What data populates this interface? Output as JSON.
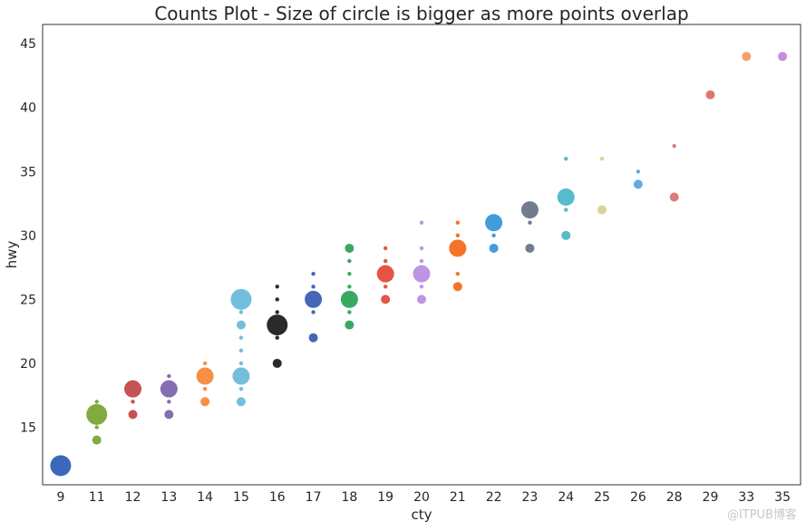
{
  "chart_data": {
    "type": "scatter",
    "title": "Counts Plot - Size of circle is bigger as more points overlap",
    "xlabel": "cty",
    "ylabel": "hwy",
    "categories": [
      "9",
      "11",
      "12",
      "13",
      "14",
      "15",
      "16",
      "17",
      "18",
      "19",
      "20",
      "21",
      "22",
      "23",
      "24",
      "25",
      "26",
      "28",
      "29",
      "33",
      "35"
    ],
    "ylim": [
      10.5,
      46.5
    ],
    "yticks": [
      15,
      20,
      25,
      30,
      35,
      40,
      45
    ],
    "grid": false,
    "legend": "none",
    "groups": [
      {
        "category": "9",
        "color": "#3060b8",
        "points": [
          {
            "y": 12,
            "count": 5
          }
        ]
      },
      {
        "category": "11",
        "color": "#7aa637",
        "points": [
          {
            "y": 14,
            "count": 2
          },
          {
            "y": 15,
            "count": 1
          },
          {
            "y": 16,
            "count": 5
          },
          {
            "y": 17,
            "count": 1
          }
        ]
      },
      {
        "category": "12",
        "color": "#c44949",
        "points": [
          {
            "y": 16,
            "count": 2
          },
          {
            "y": 17,
            "count": 1
          },
          {
            "y": 18,
            "count": 4
          }
        ]
      },
      {
        "category": "13",
        "color": "#7d66ab",
        "points": [
          {
            "y": 16,
            "count": 2
          },
          {
            "y": 17,
            "count": 1
          },
          {
            "y": 18,
            "count": 4
          },
          {
            "y": 19,
            "count": 1
          }
        ]
      },
      {
        "category": "14",
        "color": "#f58a3d",
        "points": [
          {
            "y": 17,
            "count": 2
          },
          {
            "y": 18,
            "count": 1
          },
          {
            "y": 19,
            "count": 4
          },
          {
            "y": 20,
            "count": 1
          }
        ]
      },
      {
        "category": "15",
        "color": "#6bbad9",
        "points": [
          {
            "y": 17,
            "count": 2
          },
          {
            "y": 18,
            "count": 1
          },
          {
            "y": 19,
            "count": 4
          },
          {
            "y": 20,
            "count": 1
          },
          {
            "y": 21,
            "count": 1
          },
          {
            "y": 22,
            "count": 1
          },
          {
            "y": 23,
            "count": 2
          },
          {
            "y": 24,
            "count": 1
          },
          {
            "y": 25,
            "count": 5
          }
        ]
      },
      {
        "category": "16",
        "color": "#1f1f1f",
        "points": [
          {
            "y": 20,
            "count": 2
          },
          {
            "y": 22,
            "count": 1
          },
          {
            "y": 23,
            "count": 5
          },
          {
            "y": 24,
            "count": 1
          },
          {
            "y": 25,
            "count": 1
          },
          {
            "y": 26,
            "count": 1
          }
        ]
      },
      {
        "category": "17",
        "color": "#3a60b3",
        "points": [
          {
            "y": 22,
            "count": 2
          },
          {
            "y": 24,
            "count": 1
          },
          {
            "y": 25,
            "count": 4
          },
          {
            "y": 26,
            "count": 1
          },
          {
            "y": 27,
            "count": 1
          }
        ]
      },
      {
        "category": "18",
        "color": "#2ea45a",
        "points": [
          {
            "y": 23,
            "count": 2
          },
          {
            "y": 24,
            "count": 1
          },
          {
            "y": 25,
            "count": 4
          },
          {
            "y": 26,
            "count": 1
          },
          {
            "y": 27,
            "count": 1
          },
          {
            "y": 28,
            "count": 1
          },
          {
            "y": 29,
            "count": 2
          }
        ]
      },
      {
        "category": "19",
        "color": "#e54b3c",
        "points": [
          {
            "y": 25,
            "count": 2
          },
          {
            "y": 26,
            "count": 1
          },
          {
            "y": 27,
            "count": 4
          },
          {
            "y": 28,
            "count": 1
          },
          {
            "y": 29,
            "count": 1
          }
        ]
      },
      {
        "category": "20",
        "color": "#bb8fe0",
        "points": [
          {
            "y": 25,
            "count": 2
          },
          {
            "y": 26,
            "count": 1
          },
          {
            "y": 27,
            "count": 4
          },
          {
            "y": 28,
            "count": 1
          },
          {
            "y": 29,
            "count": 1
          },
          {
            "y": 31,
            "count": 1
          }
        ]
      },
      {
        "category": "21",
        "color": "#f26b1d",
        "points": [
          {
            "y": 26,
            "count": 2
          },
          {
            "y": 27,
            "count": 1
          },
          {
            "y": 29,
            "count": 4
          },
          {
            "y": 30,
            "count": 1
          },
          {
            "y": 31,
            "count": 1
          }
        ]
      },
      {
        "category": "22",
        "color": "#3897d9",
        "points": [
          {
            "y": 29,
            "count": 2
          },
          {
            "y": 30,
            "count": 1
          },
          {
            "y": 31,
            "count": 4
          }
        ]
      },
      {
        "category": "23",
        "color": "#6a7588",
        "points": [
          {
            "y": 29,
            "count": 2
          },
          {
            "y": 31,
            "count": 1
          },
          {
            "y": 32,
            "count": 4
          }
        ]
      },
      {
        "category": "24",
        "color": "#4eb6ca",
        "points": [
          {
            "y": 30,
            "count": 2
          },
          {
            "y": 32,
            "count": 1
          },
          {
            "y": 33,
            "count": 4
          },
          {
            "y": 36,
            "count": 1
          }
        ]
      },
      {
        "category": "25",
        "color": "#d6d38c",
        "points": [
          {
            "y": 32,
            "count": 2
          },
          {
            "y": 36,
            "count": 1
          }
        ]
      },
      {
        "category": "26",
        "color": "#5aa8df",
        "points": [
          {
            "y": 34,
            "count": 2
          },
          {
            "y": 35,
            "count": 1
          }
        ]
      },
      {
        "category": "28",
        "color": "#d97575",
        "points": [
          {
            "y": 33,
            "count": 2
          },
          {
            "y": 37,
            "count": 1
          }
        ]
      },
      {
        "category": "29",
        "color": "#d9706a",
        "points": [
          {
            "y": 41,
            "count": 2
          }
        ]
      },
      {
        "category": "33",
        "color": "#f59a64",
        "points": [
          {
            "y": 44,
            "count": 2
          }
        ]
      },
      {
        "category": "35",
        "color": "#c784db",
        "points": [
          {
            "y": 44,
            "count": 2
          }
        ]
      }
    ]
  },
  "watermark": "@ITPUB博客"
}
